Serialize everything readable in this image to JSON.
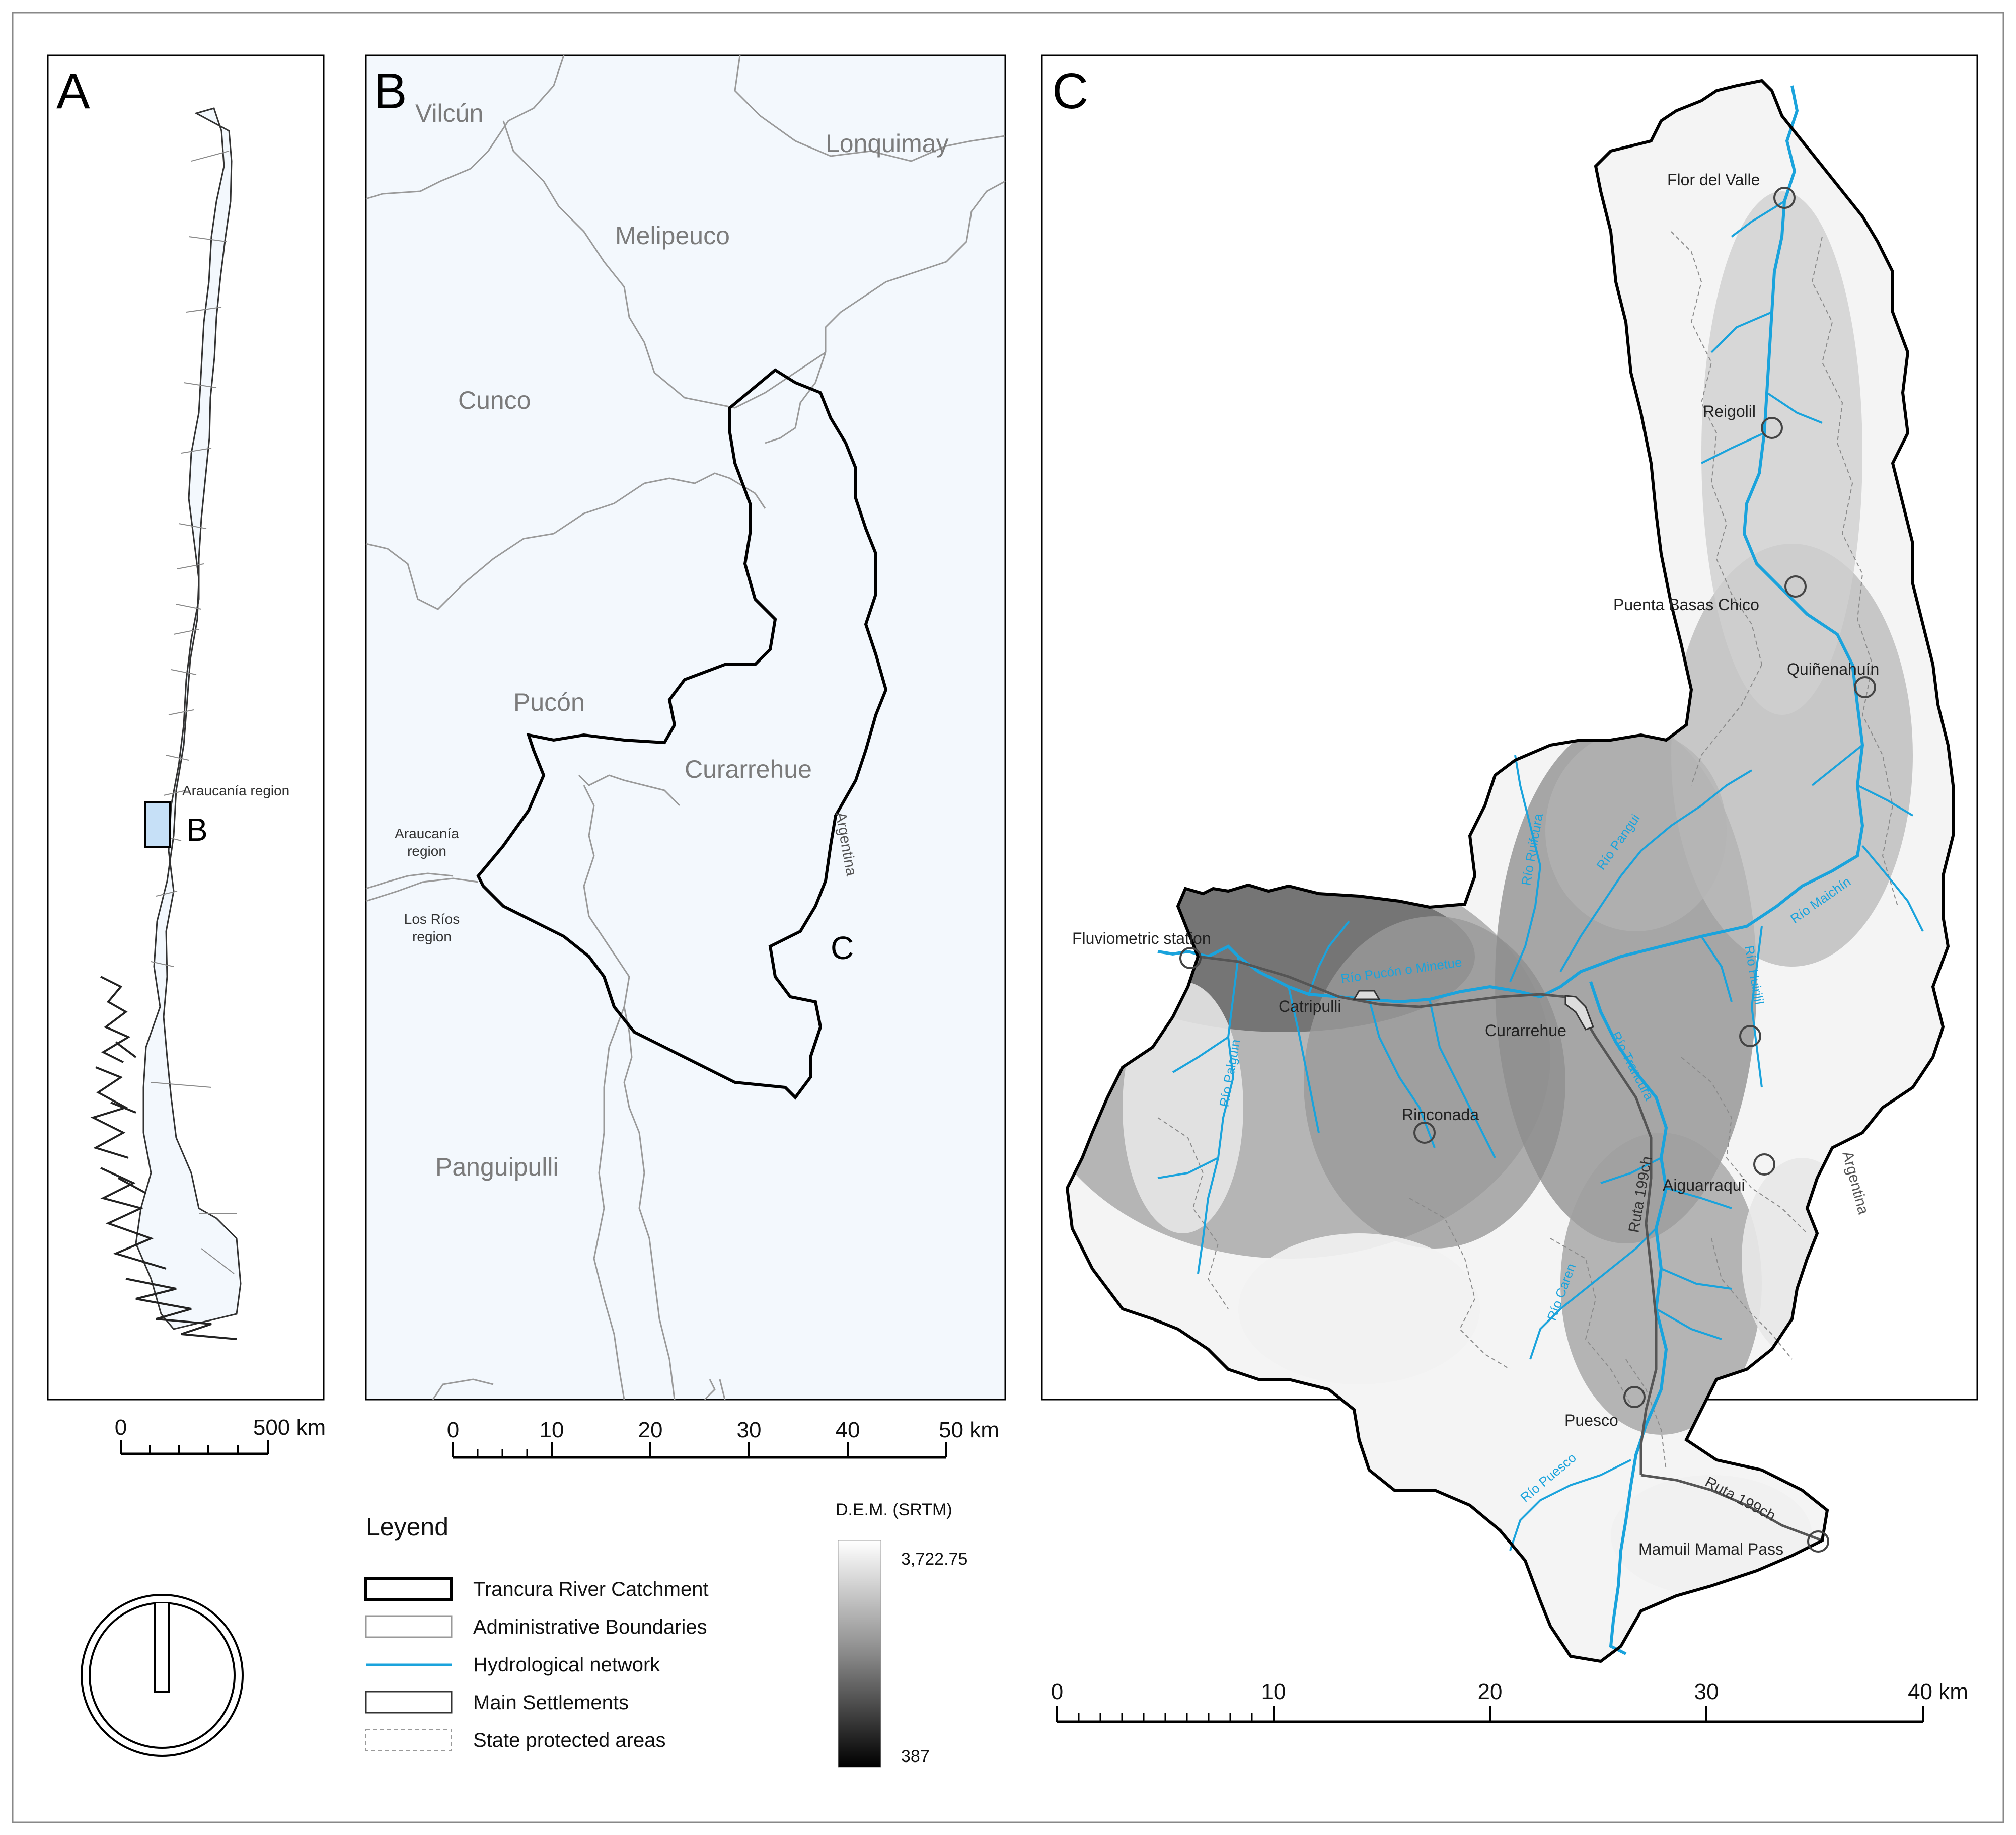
{
  "panels": {
    "a": {
      "letter": "A",
      "region_label": "Araucanía region",
      "inset_letter": "B",
      "scale": {
        "labels": [
          "0",
          "500 km"
        ]
      }
    },
    "b": {
      "letter": "B",
      "communes": [
        "Vilcún",
        "Lonquimay",
        "Melipeuco",
        "Cunco",
        "Pucón",
        "Curarrehue",
        "Panguipulli"
      ],
      "region_top": [
        "Araucanía",
        "region"
      ],
      "region_bottom": [
        "Los Ríos",
        "region"
      ],
      "country": "Argentina",
      "inset_letter": "C",
      "scale": {
        "labels": [
          "0",
          "10",
          "20",
          "30",
          "40",
          "50 km"
        ]
      }
    },
    "c": {
      "letter": "C",
      "settlements": [
        "Flor del Valle",
        "Reigolil",
        "Puenta Basas Chico",
        "Quiñenahuín",
        "Fluviometric station",
        "Catripulli",
        "Curarrehue",
        "Rinconada",
        "Aiguarraqui",
        "Puesco",
        "Mamuil Mamal Pass"
      ],
      "rivers": [
        "Río Pangui",
        "Río Maichín",
        "Río Ruifcura",
        "Río Pucón o Minetue",
        "Río Huirilil",
        "Río Trancura",
        "Río Palguín",
        "Río Caren",
        "Río Puesco"
      ],
      "roads": [
        "Ruta 199ch",
        "Ruta 199ch"
      ],
      "country": "Argentina",
      "scale": {
        "labels": [
          "0",
          "10",
          "20",
          "30",
          "40 km"
        ]
      }
    }
  },
  "legend": {
    "title": "Leyend",
    "items": [
      "Trancura River Catchment",
      "Administrative Boundaries",
      "Hydrological network",
      "Main Settlements",
      "State protected areas"
    ]
  },
  "dem": {
    "title": "D.E.M. (SRTM)",
    "max": "3,722.75",
    "min": "387"
  },
  "colors": {
    "land": "#f3f8fd",
    "river": "#1aa3dc",
    "admin": "#999999",
    "catchment": "#000000"
  },
  "icons": {
    "north_arrow": "north-arrow-icon"
  }
}
